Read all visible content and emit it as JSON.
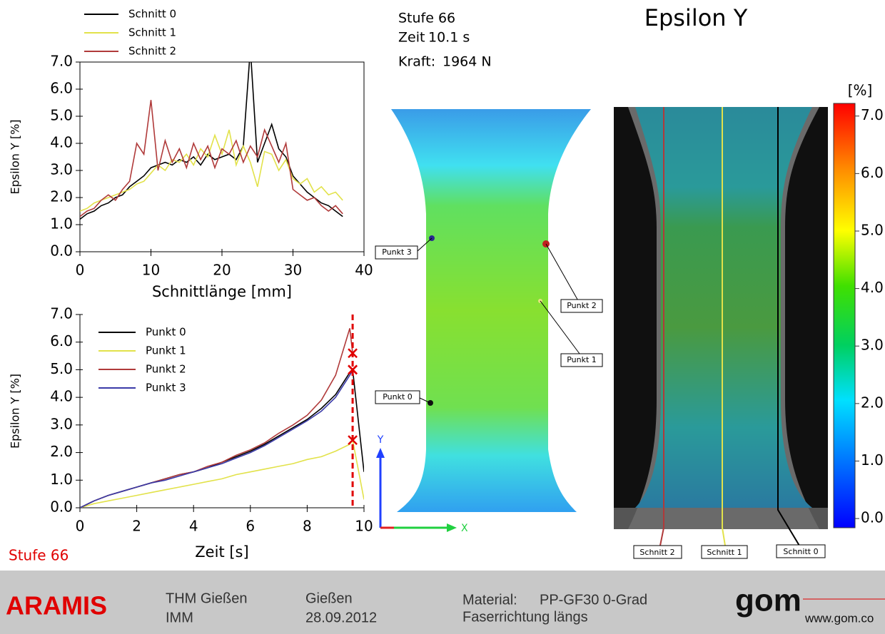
{
  "chart_data": [
    {
      "type": "line",
      "x_label": "Schnittlänge [mm]",
      "y_label": "Epsilon Y [%]",
      "x": [
        0,
        1,
        2,
        3,
        4,
        5,
        6,
        7,
        8,
        9,
        10,
        11,
        12,
        13,
        14,
        15,
        16,
        17,
        18,
        19,
        20,
        21,
        22,
        23,
        24,
        25,
        26,
        27,
        28,
        29,
        30,
        31,
        32,
        33,
        34,
        35,
        36,
        37
      ],
      "series": [
        {
          "name": "Schnitt 0",
          "color": "#000000",
          "values": [
            1.2,
            1.4,
            1.5,
            1.7,
            1.8,
            2.0,
            2.1,
            2.4,
            2.6,
            2.8,
            3.1,
            3.2,
            3.3,
            3.2,
            3.4,
            3.3,
            3.5,
            3.2,
            3.6,
            3.4,
            3.5,
            3.6,
            3.4,
            3.9,
            7.5,
            3.3,
            4.0,
            4.7,
            3.8,
            3.5,
            2.8,
            2.5,
            2.2,
            2.0,
            1.8,
            1.7,
            1.5,
            1.3
          ]
        },
        {
          "name": "Schnitt 1",
          "color": "#e2e24a",
          "values": [
            1.5,
            1.6,
            1.8,
            1.9,
            2.0,
            2.1,
            2.2,
            2.3,
            2.5,
            2.6,
            2.9,
            3.2,
            3.0,
            3.4,
            3.3,
            3.6,
            3.2,
            3.8,
            3.5,
            4.3,
            3.6,
            4.5,
            3.2,
            3.9,
            3.3,
            2.4,
            3.7,
            3.6,
            3.0,
            3.4,
            2.7,
            2.5,
            2.7,
            2.2,
            2.4,
            2.1,
            2.2,
            1.9
          ]
        },
        {
          "name": "Schnitt 2",
          "color": "#b03a3a",
          "values": [
            1.3,
            1.5,
            1.6,
            1.9,
            2.1,
            1.9,
            2.3,
            2.6,
            4.0,
            3.6,
            5.6,
            3.0,
            4.1,
            3.3,
            3.8,
            3.1,
            4.0,
            3.4,
            3.9,
            3.1,
            3.8,
            3.6,
            4.1,
            3.3,
            3.9,
            3.5,
            4.5,
            3.9,
            3.3,
            4.0,
            2.3,
            2.1,
            1.9,
            2.0,
            1.7,
            1.5,
            1.7,
            1.4
          ]
        }
      ],
      "xlim": [
        0,
        40
      ],
      "xticks": [
        0,
        10,
        20,
        30,
        40
      ],
      "ylim": [
        0,
        7
      ],
      "yticks": [
        {
          "value": 0,
          "label": "0.0"
        },
        {
          "value": 1,
          "label": "1.0"
        },
        {
          "value": 2,
          "label": "2.0"
        },
        {
          "value": 3,
          "label": "3.0"
        },
        {
          "value": 4,
          "label": "4.0"
        },
        {
          "value": 5,
          "label": "5.0"
        },
        {
          "value": 6,
          "label": "6.0"
        },
        {
          "value": 7,
          "label": "7.0"
        }
      ],
      "frame": true,
      "legend": "above"
    },
    {
      "type": "line",
      "x_label": "Zeit [s]",
      "y_label": "Epsilon Y [%]",
      "x": [
        0,
        0.5,
        1,
        1.5,
        2,
        2.5,
        3,
        3.5,
        4,
        4.5,
        5,
        5.5,
        6,
        6.5,
        7,
        7.5,
        8,
        8.5,
        9,
        9.5,
        9.6,
        10
      ],
      "series": [
        {
          "name": "Punkt 0",
          "color": "#000000",
          "values": [
            0,
            0.25,
            0.45,
            0.6,
            0.75,
            0.9,
            1.05,
            1.2,
            1.3,
            1.45,
            1.65,
            1.85,
            2.05,
            2.3,
            2.6,
            2.9,
            3.2,
            3.6,
            4.1,
            4.9,
            5.0,
            1.3
          ]
        },
        {
          "name": "Punkt 1",
          "color": "#e2e24a",
          "values": [
            0,
            0.15,
            0.25,
            0.35,
            0.45,
            0.55,
            0.65,
            0.75,
            0.85,
            0.95,
            1.05,
            1.2,
            1.3,
            1.4,
            1.5,
            1.6,
            1.75,
            1.85,
            2.05,
            2.3,
            2.45,
            0.3
          ]
        },
        {
          "name": "Punkt 2",
          "color": "#b03a3a",
          "values": [
            0,
            0.25,
            0.45,
            0.6,
            0.75,
            0.9,
            1.05,
            1.2,
            1.3,
            1.5,
            1.65,
            1.9,
            2.1,
            2.35,
            2.7,
            3.0,
            3.35,
            3.9,
            4.8,
            6.5,
            5.6,
            null
          ]
        },
        {
          "name": "Punkt 3",
          "color": "#3a3aa8",
          "values": [
            0,
            0.25,
            0.45,
            0.6,
            0.75,
            0.9,
            1.0,
            1.15,
            1.3,
            1.45,
            1.6,
            1.8,
            2.0,
            2.25,
            2.55,
            2.85,
            3.15,
            3.5,
            4.0,
            4.8,
            5.0,
            null
          ]
        }
      ],
      "cursor": {
        "x": 9.6,
        "color": "#e00000"
      },
      "xlim": [
        0,
        10
      ],
      "xticks": [
        0,
        2,
        4,
        6,
        8,
        10
      ],
      "ylim": [
        0,
        7
      ],
      "yticks": [
        {
          "value": 0,
          "label": "0.0"
        },
        {
          "value": 1,
          "label": "1.0"
        },
        {
          "value": 2,
          "label": "2.0"
        },
        {
          "value": 3,
          "label": "3.0"
        },
        {
          "value": 4,
          "label": "4.0"
        },
        {
          "value": 5,
          "label": "5.0"
        },
        {
          "value": 6,
          "label": "6.0"
        },
        {
          "value": 7,
          "label": "7.0"
        }
      ],
      "frame": false,
      "legend": "upper left"
    }
  ],
  "info": {
    "stage": "Stufe 66",
    "time_label": "Zeit",
    "time": "10.1 s",
    "force_label": "Kraft:",
    "force": "1964 N"
  },
  "title": "Epsilon Y",
  "stage_note": "Stufe 66",
  "specimen_points": [
    "Punkt 3",
    "Punkt 2",
    "Punkt 1",
    "Punkt 0"
  ],
  "coordinate_axes": [
    "Y",
    "X"
  ],
  "sections": [
    "Schnitt 2",
    "Schnitt 1",
    "Schnitt 0"
  ],
  "colorbar": {
    "unit": "[%]",
    "lim": [
      -0.16,
      7.22
    ],
    "ticks": [
      {
        "value": 0,
        "label": "0.0"
      },
      {
        "value": 1,
        "label": "1.0"
      },
      {
        "value": 2,
        "label": "2.0"
      },
      {
        "value": 3,
        "label": "3.0"
      },
      {
        "value": 4,
        "label": "4.0"
      },
      {
        "value": 5,
        "label": "5.0"
      },
      {
        "value": 6,
        "label": "6.0"
      },
      {
        "value": 7,
        "label": "7.0"
      }
    ]
  },
  "footer": {
    "product": "ARAMIS",
    "org": "THM Gießen",
    "dept": "IMM",
    "city": "Gießen",
    "date": "28.09.2012",
    "material_label": "Material:",
    "material": "PP-GF30 0-Grad",
    "fiber": "Faserrichtung längs",
    "logo": "gom",
    "url": "www.gom.co"
  }
}
